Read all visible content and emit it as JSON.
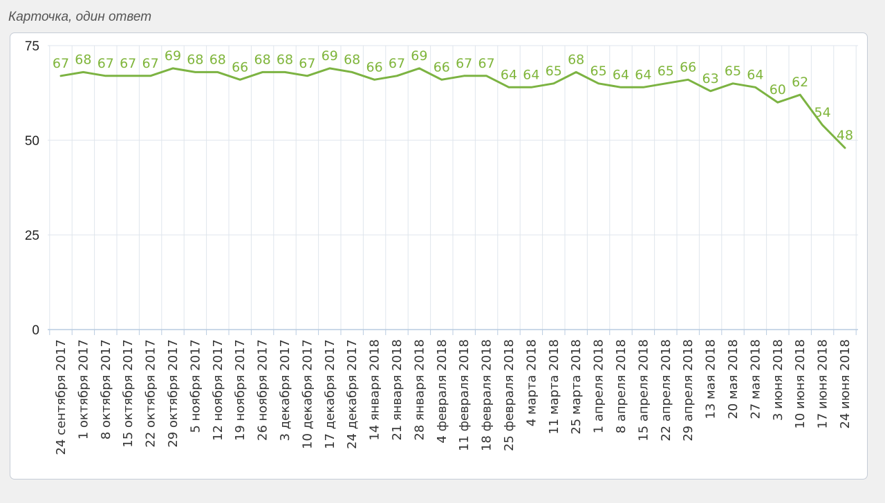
{
  "caption": "Карточка, один ответ",
  "colors": {
    "series": "#7cb342",
    "label": "#7fb53b",
    "grid": "#dfe5ec",
    "axis": "#b8cbe0"
  },
  "chart_data": {
    "type": "line",
    "title": "",
    "xlabel": "",
    "ylabel": "",
    "ylim": [
      0,
      75
    ],
    "yticks": [
      0,
      25,
      50,
      75
    ],
    "grid": true,
    "legend": "none",
    "categories": [
      "24 сентября 2017",
      "1 октября 2017",
      "8 октября 2017",
      "15 октября 2017",
      "22 октября 2017",
      "29 октября 2017",
      "5 ноября 2017",
      "12 ноября 2017",
      "19 ноября 2017",
      "26 ноября 2017",
      "3 декабря 2017",
      "10 декабря 2017",
      "17 декабря 2017",
      "24 декабря 2017",
      "14 января 2018",
      "21 января 2018",
      "28 января 2018",
      "4 февраля 2018",
      "11 февраля 2018",
      "18 февраля 2018",
      "25 февраля 2018",
      "4 марта 2018",
      "11 марта 2018",
      "25 марта 2018",
      "1 апреля 2018",
      "8 апреля 2018",
      "15 апреля 2018",
      "22 апреля 2018",
      "29 апреля 2018",
      "13 мая 2018",
      "20 мая 2018",
      "27 мая 2018",
      "3 июня 2018",
      "10 июня 2018",
      "17 июня 2018",
      "24 июня 2018"
    ],
    "series": [
      {
        "values": [
          67,
          68,
          67,
          67,
          67,
          69,
          68,
          68,
          66,
          68,
          68,
          67,
          69,
          68,
          66,
          67,
          69,
          66,
          67,
          67,
          64,
          64,
          65,
          68,
          65,
          64,
          64,
          65,
          66,
          63,
          65,
          64,
          60,
          62,
          54,
          48
        ]
      }
    ]
  }
}
